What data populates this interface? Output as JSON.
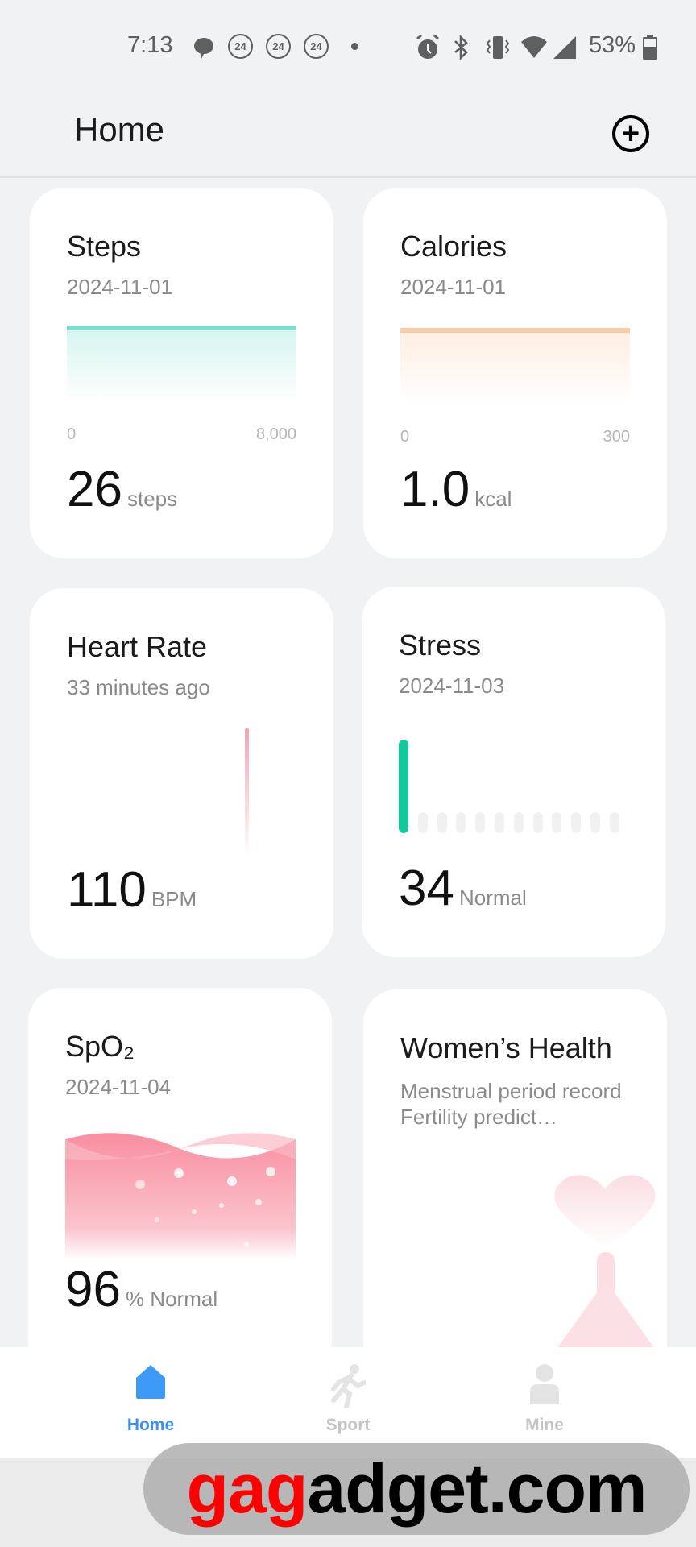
{
  "status_bar": {
    "time": "7:13",
    "notif_badges": [
      "24",
      "24",
      "24"
    ],
    "battery": "53%",
    "icons": [
      "chat-icon",
      "alarm-icon",
      "bluetooth-icon",
      "vibrate-icon",
      "wifi-icon",
      "signal-icon",
      "battery-icon"
    ]
  },
  "header": {
    "title": "Home",
    "add_icon": "plus-circle-icon"
  },
  "cards": {
    "steps": {
      "title": "Steps",
      "date": "2024-11-01",
      "axis_min": "0",
      "axis_max": "8,000",
      "value": "26",
      "unit": "steps",
      "progress": 0.003,
      "color": "#7fdccc"
    },
    "calories": {
      "title": "Calories",
      "date": "2024-11-01",
      "axis_min": "0",
      "axis_max": "300",
      "value": "1.0",
      "unit": "kcal",
      "progress": 0.003,
      "color": "#f9cba6"
    },
    "heart": {
      "title": "Heart Rate",
      "date": "33 minutes ago",
      "value": "110",
      "unit": "BPM",
      "color": "#f2a3b3"
    },
    "stress": {
      "title": "Stress",
      "date": "2024-11-03",
      "value": "34",
      "unit": "Normal",
      "color": "#13c99b"
    },
    "spo2": {
      "title": "SpO₂",
      "date": "2024-11-04",
      "value": "96",
      "unit": "% Normal",
      "color": "#f98ea0"
    },
    "women": {
      "title": "Women’s Health",
      "desc": "Menstrual period record Fertility predict…"
    }
  },
  "nav": {
    "items": [
      {
        "label": "Home",
        "active": true
      },
      {
        "label": "Sport"
      },
      {
        "label": "Mine"
      }
    ],
    "active_color": "#3d8ff0"
  },
  "watermark": {
    "text_red": "gag",
    "text_black": "adget.com"
  }
}
